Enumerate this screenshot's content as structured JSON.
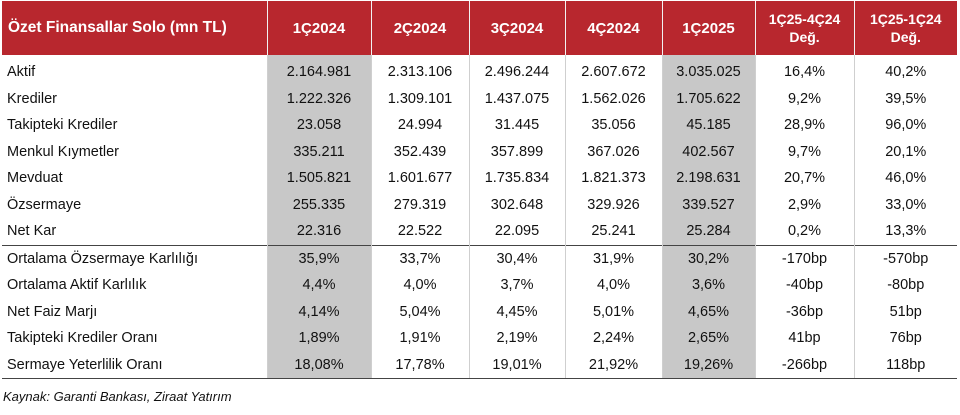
{
  "table": {
    "headers": [
      "Özet Finansallar Solo (mn TL)",
      "1Ç2024",
      "2Ç2024",
      "3Ç2024",
      "4Ç2024",
      "1Ç2025"
    ],
    "change_headers": [
      {
        "line1": "1Ç25-4Ç24",
        "line2": "Değ."
      },
      {
        "line1": "1Ç25-1Ç24",
        "line2": "Değ."
      }
    ],
    "highlight_columns": [
      "1Ç2024",
      "1Ç2025"
    ],
    "rows": [
      [
        "Aktif",
        "2.164.981",
        "2.313.106",
        "2.496.244",
        "2.607.672",
        "3.035.025",
        "16,4%",
        "40,2%"
      ],
      [
        "Krediler",
        "1.222.326",
        "1.309.101",
        "1.437.075",
        "1.562.026",
        "1.705.622",
        "9,2%",
        "39,5%"
      ],
      [
        "Takipteki Krediler",
        "23.058",
        "24.994",
        "31.445",
        "35.056",
        "45.185",
        "28,9%",
        "96,0%"
      ],
      [
        "Menkul Kıymetler",
        "335.211",
        "352.439",
        "357.899",
        "367.026",
        "402.567",
        "9,7%",
        "20,1%"
      ],
      [
        "Mevduat",
        "1.505.821",
        "1.601.677",
        "1.735.834",
        "1.821.373",
        "2.198.631",
        "20,7%",
        "46,0%"
      ],
      [
        "Özsermaye",
        "255.335",
        "279.319",
        "302.648",
        "329.926",
        "339.527",
        "2,9%",
        "33,0%"
      ],
      [
        "Net Kar",
        "22.316",
        "22.522",
        "22.095",
        "25.241",
        "25.284",
        "0,2%",
        "13,3%"
      ],
      [
        "Ortalama Özsermaye Karlılığı",
        "35,9%",
        "33,7%",
        "30,4%",
        "31,9%",
        "30,2%",
        "-170bp",
        "-570bp"
      ],
      [
        "Ortalama Aktif Karlılık",
        "4,4%",
        "4,0%",
        "3,7%",
        "4,0%",
        "3,6%",
        "-40bp",
        "-80bp"
      ],
      [
        "Net Faiz Marjı",
        "4,14%",
        "5,04%",
        "4,45%",
        "5,01%",
        "4,65%",
        "-36bp",
        "51bp"
      ],
      [
        "Takipteki Krediler Oranı",
        "1,89%",
        "1,91%",
        "2,19%",
        "2,24%",
        "2,65%",
        "41bp",
        "76bp"
      ],
      [
        "Sermaye Yeterlilik Oranı",
        "18,08%",
        "17,78%",
        "19,01%",
        "21,92%",
        "19,26%",
        "-266bp",
        "118bp"
      ]
    ]
  },
  "source": "Kaynak: Garanti Bankası, Ziraat Yatırım",
  "colors": {
    "header_bg": "#b8272e",
    "highlight_bg": "#c8c8c8"
  }
}
